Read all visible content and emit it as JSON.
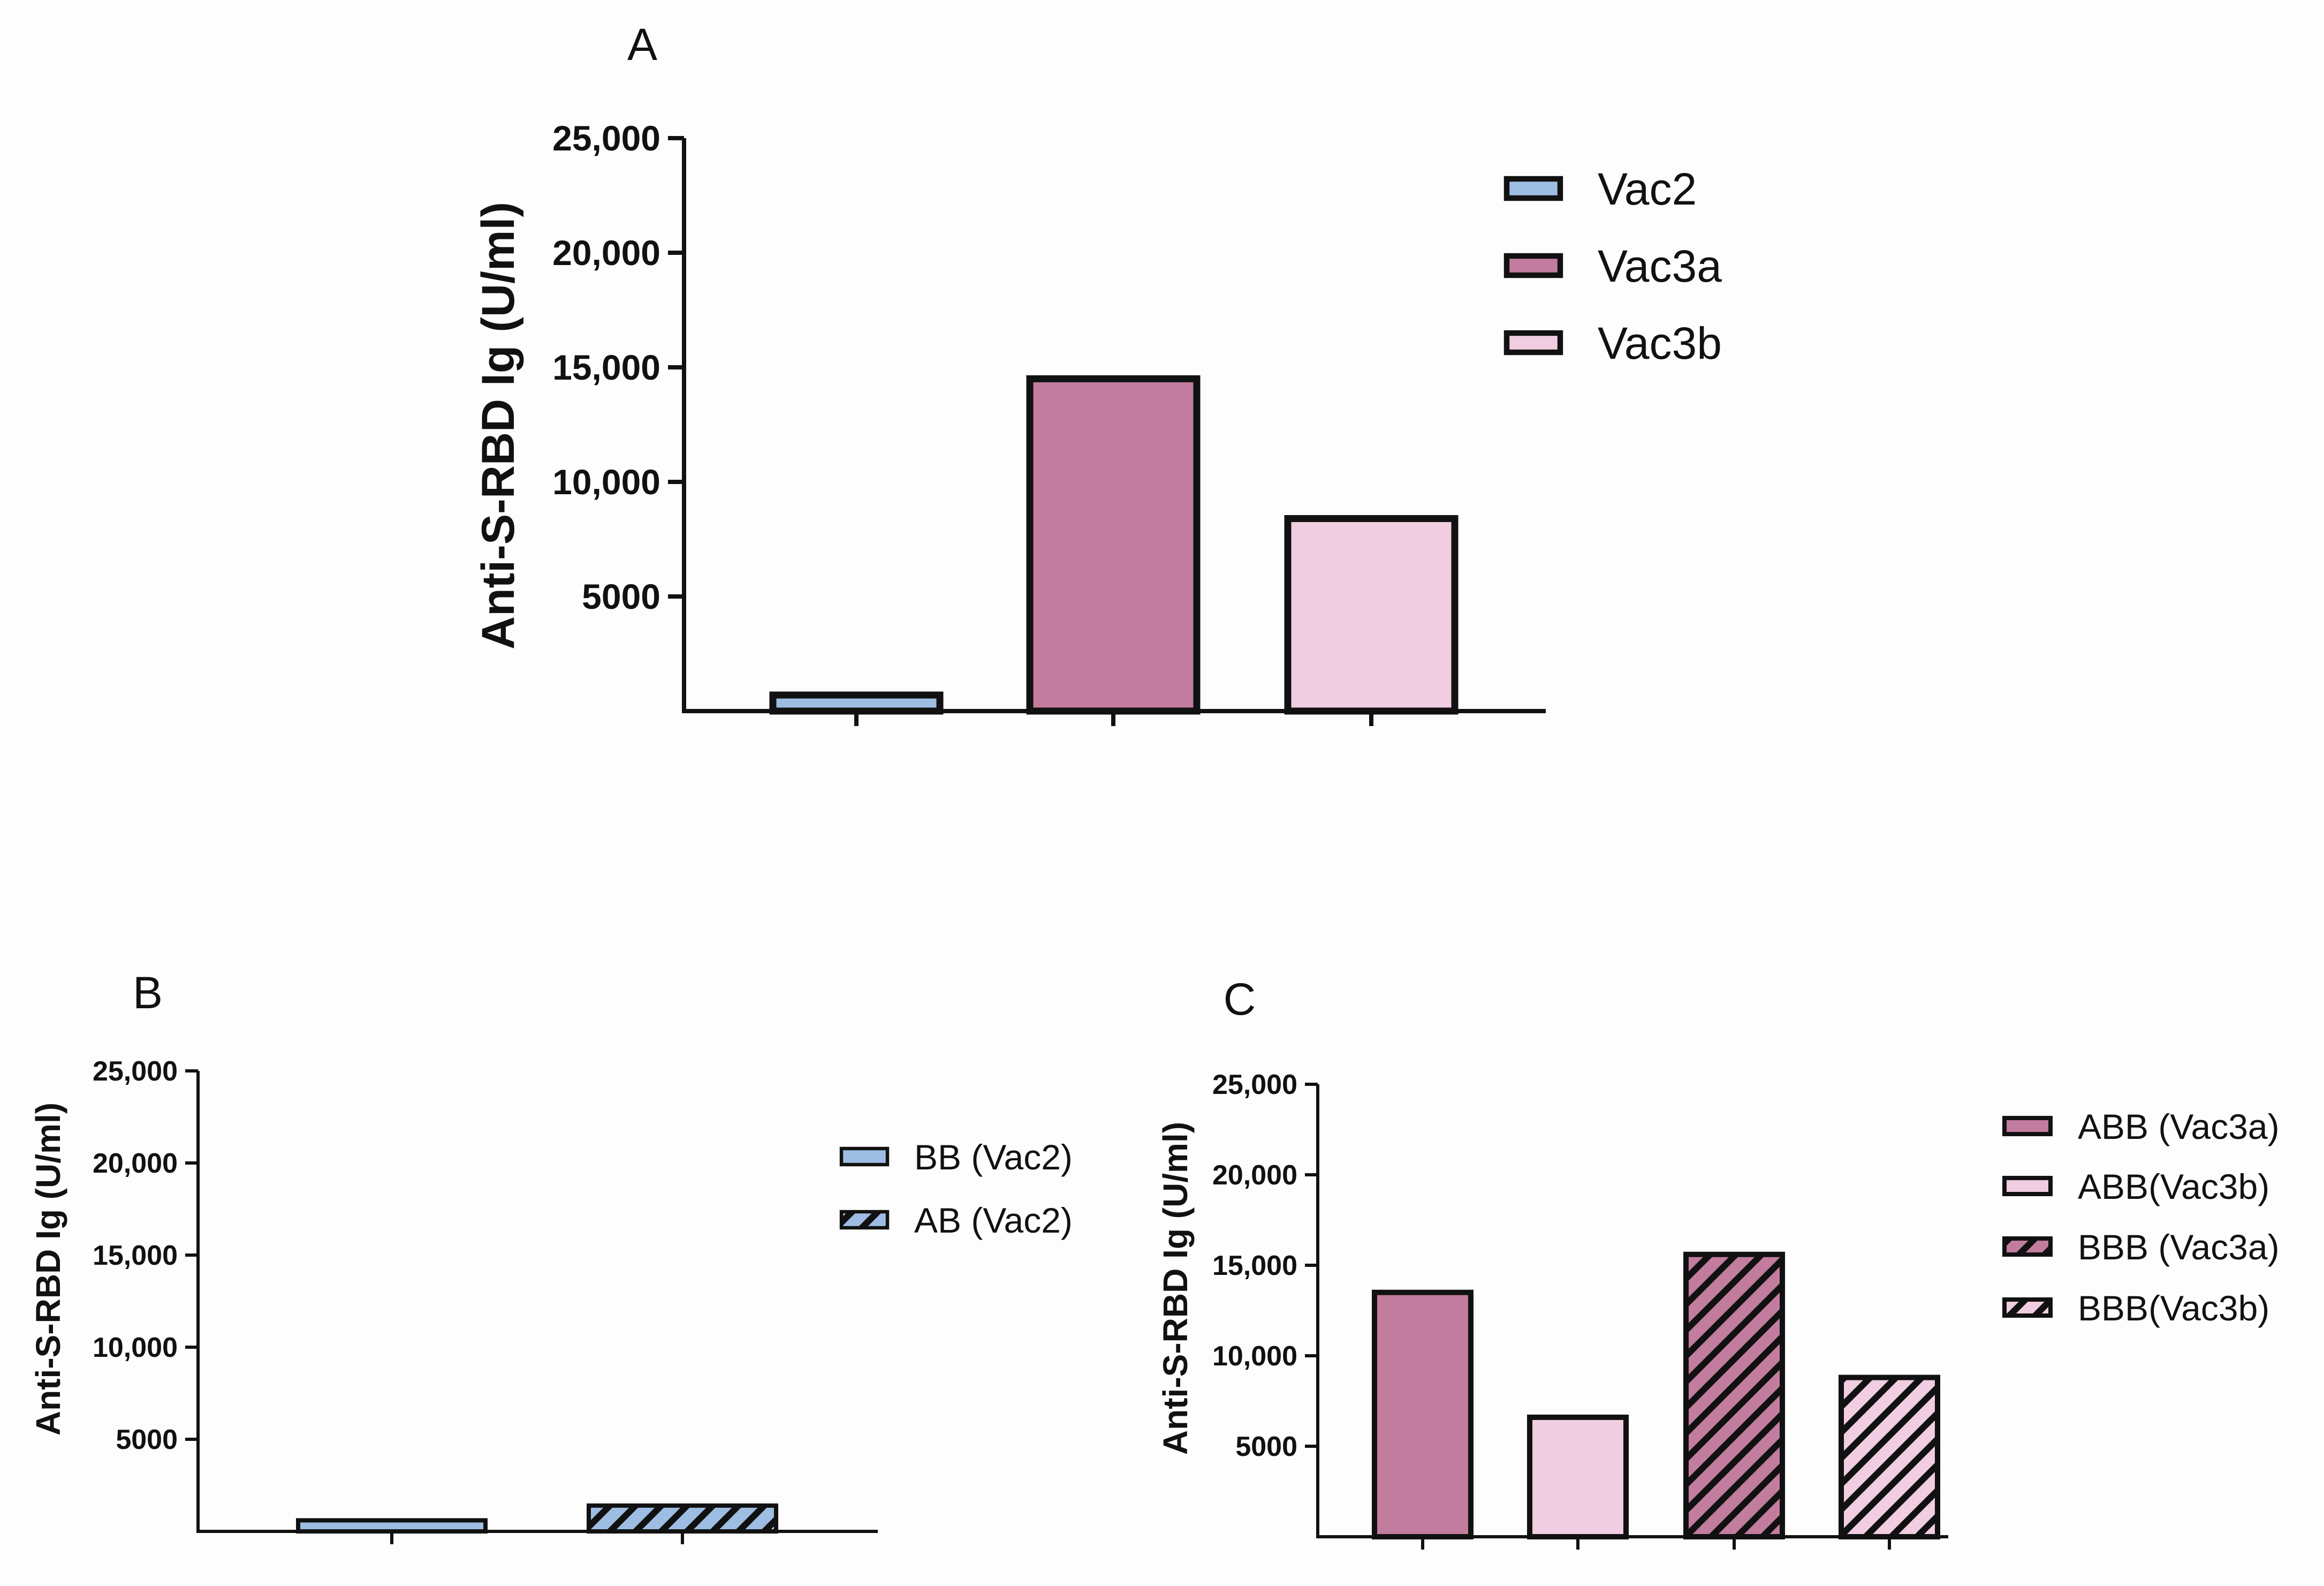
{
  "colors": {
    "vac2": "#9dbde2",
    "vac3a": "#c27c9e",
    "vac3b": "#f0cde0",
    "stroke": "#111111"
  },
  "chart_data": [
    {
      "panel": "A",
      "type": "bar",
      "categories": [
        "Vac2",
        "Vac3a",
        "Vac3b"
      ],
      "values": [
        700,
        14500,
        8400
      ],
      "ylabel": "Anti-S-RBD Ig (U/ml)",
      "yticks": [
        5000,
        10000,
        15000,
        20000,
        25000
      ],
      "ytick_labels": [
        "5000",
        "10,000",
        "15,000",
        "20,000",
        "25,000"
      ],
      "ylim": [
        0,
        25000
      ],
      "legend": [
        "Vac2",
        "Vac3a",
        "Vac3b"
      ],
      "fills": [
        "vac2",
        "vac3a",
        "vac3b"
      ],
      "hatched": [
        false,
        false,
        false
      ]
    },
    {
      "panel": "B",
      "type": "bar",
      "categories": [
        "BB (Vac2)",
        "AB (Vac2)"
      ],
      "values": [
        600,
        1400
      ],
      "ylabel": "Anti-S-RBD Ig (U/ml)",
      "yticks": [
        5000,
        10000,
        15000,
        20000,
        25000
      ],
      "ytick_labels": [
        "5000",
        "10,000",
        "15,000",
        "20,000",
        "25,000"
      ],
      "ylim": [
        0,
        25000
      ],
      "legend": [
        "BB (Vac2)",
        "AB (Vac2)"
      ],
      "fills": [
        "vac2",
        "vac2"
      ],
      "hatched": [
        false,
        true
      ]
    },
    {
      "panel": "C",
      "type": "bar",
      "categories": [
        "ABB (Vac3a)",
        "ABB(Vac3b)",
        "BBB (Vac3a)",
        "BBB(Vac3b)"
      ],
      "values": [
        13500,
        6600,
        15600,
        8800
      ],
      "ylabel": "Anti-S-RBD Ig (U/ml)",
      "yticks": [
        5000,
        10000,
        15000,
        20000,
        25000
      ],
      "ytick_labels": [
        "5000",
        "10,000",
        "15,000",
        "20,000",
        "25,000"
      ],
      "ylim": [
        0,
        25000
      ],
      "legend": [
        "ABB (Vac3a)",
        "ABB(Vac3b)",
        "BBB (Vac3a)",
        "BBB(Vac3b)"
      ],
      "fills": [
        "vac3a",
        "vac3b",
        "vac3a",
        "vac3b"
      ],
      "hatched": [
        false,
        false,
        true,
        true
      ]
    }
  ]
}
